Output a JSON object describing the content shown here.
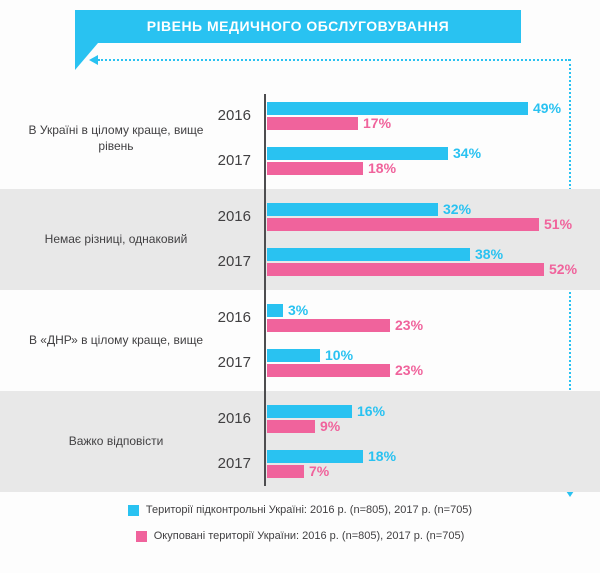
{
  "title": "РІВЕНЬ МЕДИЧНОГО ОБСЛУГОВУВАННЯ",
  "colors": {
    "cyan": "#29C2F1",
    "pink": "#F0639C",
    "stripe": "#E8E8E8",
    "axis": "#4D4D4F"
  },
  "legend": [
    {
      "label": "Території підконтрольні Україні:  2016 р. (n=805), 2017 р. (n=705)"
    },
    {
      "label": "Окуповані території України: 2016 р. (n=805), 2017 р. (n=705)"
    }
  ],
  "chart_data": {
    "type": "bar",
    "orientation": "horizontal",
    "title": "РІВЕНЬ МЕДИЧНОГО ОБСЛУГОВУВАННЯ",
    "value_suffix": "%",
    "xlim": [
      0,
      56
    ],
    "grid": false,
    "legend_position": "bottom",
    "series": [
      {
        "name": "Території підконтрольні Україні",
        "color": "#29C2F1"
      },
      {
        "name": "Окуповані території України",
        "color": "#F0639C"
      }
    ],
    "groups": [
      {
        "label": "В Україні в цілому краще, вище рівень",
        "rows": [
          {
            "year": "2016",
            "values": [
              49,
              17
            ]
          },
          {
            "year": "2017",
            "values": [
              34,
              18
            ]
          }
        ]
      },
      {
        "label": "Немає різниці, однаковий",
        "rows": [
          {
            "year": "2016",
            "values": [
              32,
              51
            ]
          },
          {
            "year": "2017",
            "values": [
              38,
              52
            ]
          }
        ]
      },
      {
        "label": "В «ДНР» в цілому краще, вище",
        "rows": [
          {
            "year": "2016",
            "values": [
              3,
              23
            ]
          },
          {
            "year": "2017",
            "values": [
              10,
              23
            ]
          }
        ]
      },
      {
        "label": "Важко відповісти",
        "rows": [
          {
            "year": "2016",
            "values": [
              16,
              9
            ]
          },
          {
            "year": "2017",
            "values": [
              18,
              7
            ]
          }
        ]
      }
    ]
  }
}
